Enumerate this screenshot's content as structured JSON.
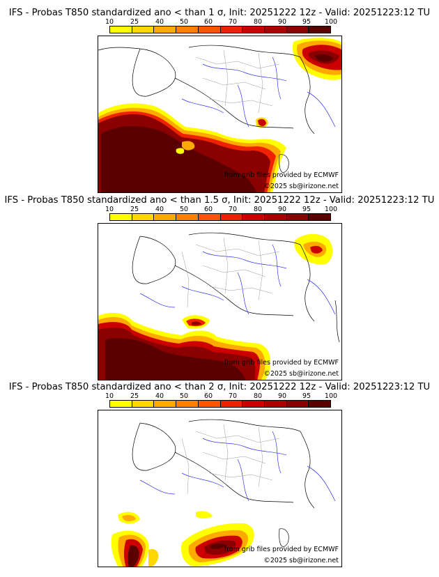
{
  "colors": [
    "#ffff00",
    "#ffd700",
    "#ffaa00",
    "#ff7f00",
    "#ff5500",
    "#ee2200",
    "#cc0000",
    "#aa0000",
    "#8b0000",
    "#5a0000"
  ],
  "colorbar_labels": [
    "10",
    "25",
    "40",
    "50",
    "60",
    "70",
    "80",
    "90",
    "95",
    "100"
  ],
  "panels": [
    {
      "title": "IFS - Probas T850  standardized ano < than 1 σ, Init: 20251222 12z - Valid: 20251223:12 TU",
      "credit_source": "from grib files provided by ECMWF",
      "credit_copyright": "©2025 sb@irizone.net"
    },
    {
      "title": "IFS - Probas T850  standardized ano < than 1.5 σ, Init: 20251222 12z - Valid: 20251223:12 TU",
      "credit_source": "from grib files provided by ECMWF",
      "credit_copyright": "©2025 sb@irizone.net"
    },
    {
      "title": "IFS - Probas T850  standardized ano < than 2 σ, Init: 20251222 12z - Valid: 20251223:12 TU",
      "credit_source": "from grib files provided by ECMWF",
      "credit_copyright": "©2025 sb@irizone.net"
    }
  ]
}
